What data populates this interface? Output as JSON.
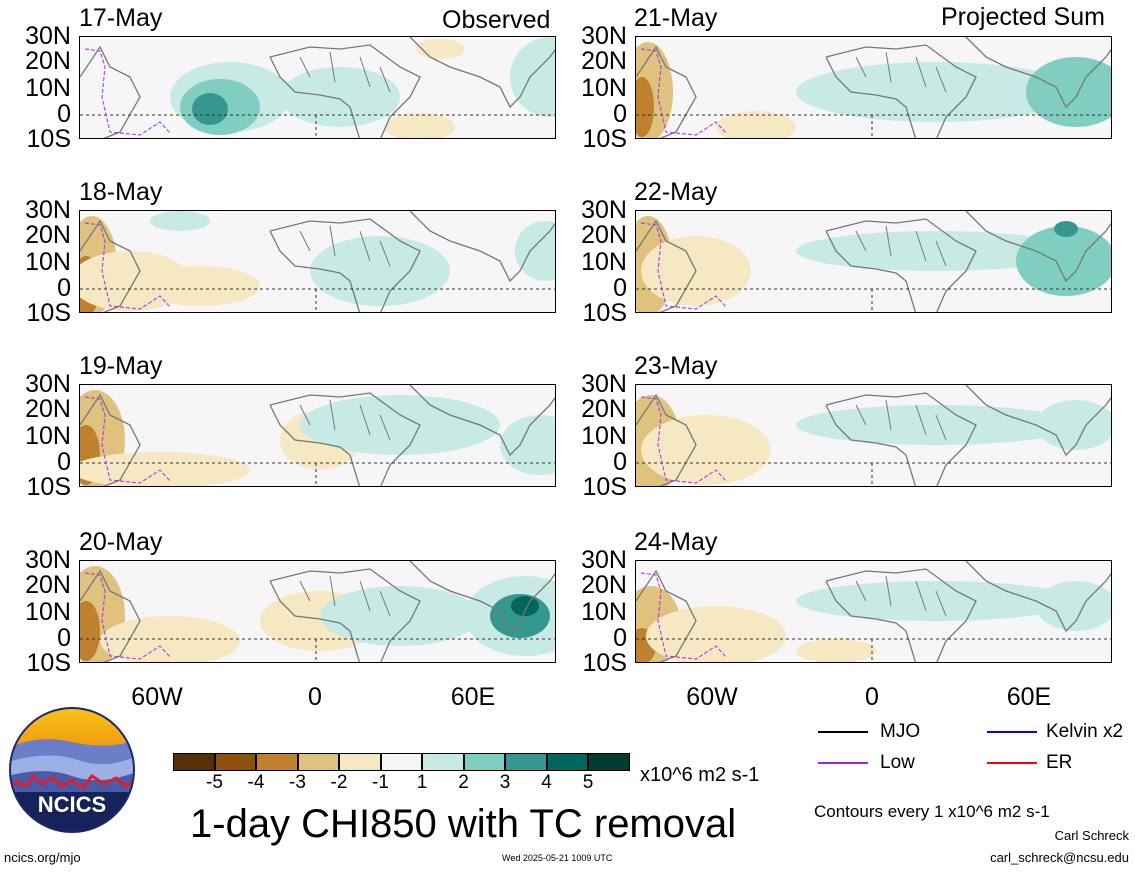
{
  "columns": {
    "left_label": "Observed",
    "right_label": "Projected Sum"
  },
  "panels_left": [
    "17-May",
    "18-May",
    "19-May",
    "20-May"
  ],
  "panels_right": [
    "21-May",
    "22-May",
    "23-May",
    "24-May"
  ],
  "lat_labels": [
    "30N",
    "20N",
    "10N",
    "0",
    "10S"
  ],
  "lon_labels": [
    "60W",
    "0",
    "60E"
  ],
  "colorbar": {
    "labels": [
      "-5",
      "-4",
      "-3",
      "-2",
      "-1",
      "1",
      "2",
      "3",
      "4",
      "5"
    ],
    "colors": [
      "#543005",
      "#8c510a",
      "#bf812d",
      "#dfc27d",
      "#f6e8c3",
      "#f5f5f5",
      "#c7eae5",
      "#80cdc1",
      "#35978f",
      "#01665e",
      "#003c30"
    ],
    "units": "x10^6 m2 s-1"
  },
  "title": "1-day CHI850 with TC removal",
  "legend": {
    "mjo": "MJO",
    "kelvin": "Kelvin x2",
    "low": "Low",
    "er": "ER",
    "colors": {
      "mjo": "#000000",
      "kelvin": "#0000ff",
      "low": "#a020f0",
      "er": "#ff0000"
    }
  },
  "contours_note": "Contours every 1 x10^6 m2 s-1",
  "logo": {
    "text": "NCICS"
  },
  "footer": {
    "url": "ncics.org/mjo",
    "timestamp": "Wed 2025-05-21 1009 UTC",
    "author": "Carl Schreck",
    "email": "carl_schreck@ncsu.edu"
  }
}
